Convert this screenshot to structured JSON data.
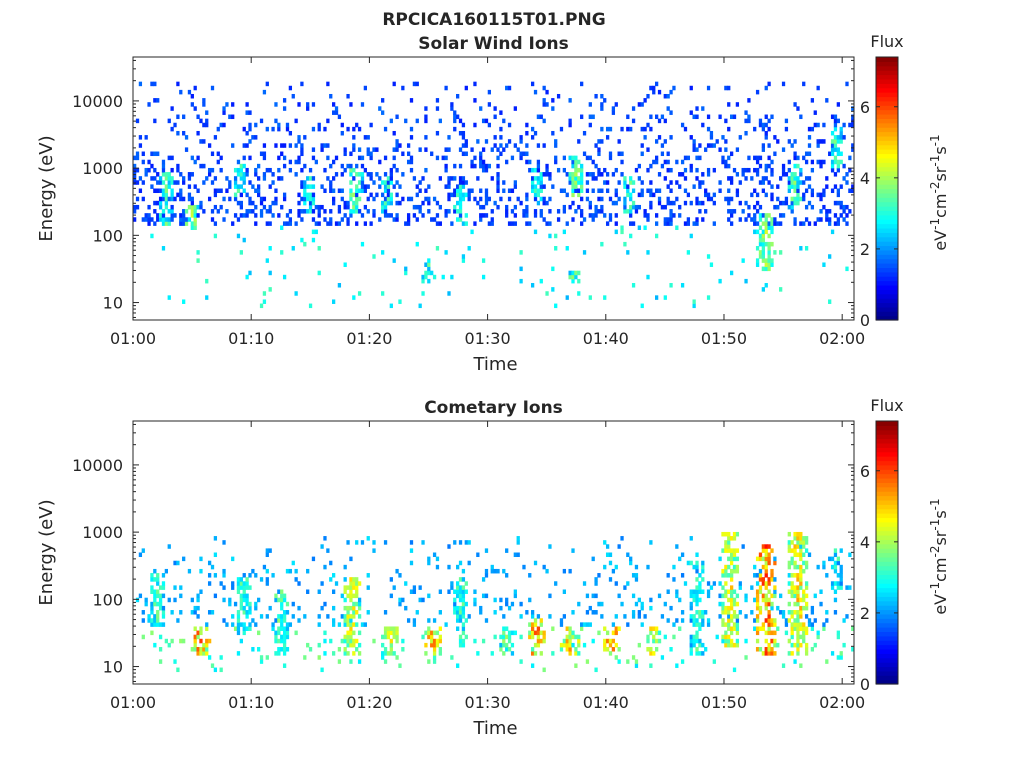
{
  "title": "RPCICA160115T01.PNG",
  "colorbar": {
    "label": "Flux",
    "unit_parts": [
      {
        "text": "eV",
        "sup": false
      },
      {
        "text": "-1",
        "sup": true
      },
      {
        "text": "cm",
        "sup": false
      },
      {
        "text": "-2",
        "sup": true
      },
      {
        "text": "sr",
        "sup": false
      },
      {
        "text": "-1",
        "sup": true
      },
      {
        "text": "s",
        "sup": false
      },
      {
        "text": "-1",
        "sup": true
      }
    ],
    "ticks": [
      "0",
      "2",
      "4",
      "6"
    ],
    "range": [
      0,
      7.4
    ],
    "colormap": "jet"
  },
  "chart_data": [
    {
      "type": "heatmap",
      "title": "Solar Wind Ions",
      "xlabel": "Time",
      "ylabel": "Energy (eV)",
      "x_ticks": [
        "01:00",
        "01:10",
        "01:20",
        "01:30",
        "01:40",
        "01:50",
        "02:00"
      ],
      "x_range_minutes": [
        0,
        61
      ],
      "y_ticks": [
        "10",
        "100",
        "1000",
        "10000"
      ],
      "y_scale": "log",
      "y_range": [
        5.5,
        45000
      ],
      "seed": 101,
      "clusters": [
        {
          "t": 2.8,
          "e_lo": 150,
          "e_hi": 900,
          "v": 3.3,
          "d": 0.5
        },
        {
          "t": 5.0,
          "e_lo": 120,
          "e_hi": 300,
          "v": 3.8,
          "d": 0.6
        },
        {
          "t": 9.0,
          "e_lo": 400,
          "e_hi": 1200,
          "v": 3.2,
          "d": 0.5
        },
        {
          "t": 14.8,
          "e_lo": 200,
          "e_hi": 800,
          "v": 3.2,
          "d": 0.5
        },
        {
          "t": 18.8,
          "e_lo": 200,
          "e_hi": 1000,
          "v": 3.6,
          "d": 0.6
        },
        {
          "t": 21.5,
          "e_lo": 200,
          "e_hi": 800,
          "v": 3.3,
          "d": 0.5
        },
        {
          "t": 25.0,
          "e_lo": 20,
          "e_hi": 40,
          "v": 3.2,
          "d": 0.5
        },
        {
          "t": 27.8,
          "e_lo": 150,
          "e_hi": 600,
          "v": 3.2,
          "d": 0.6
        },
        {
          "t": 34.2,
          "e_lo": 300,
          "e_hi": 1000,
          "v": 3.2,
          "d": 0.5
        },
        {
          "t": 37.5,
          "e_lo": 400,
          "e_hi": 1500,
          "v": 3.7,
          "d": 0.6
        },
        {
          "t": 37.3,
          "e_lo": 20,
          "e_hi": 30,
          "v": 3.5,
          "d": 0.5
        },
        {
          "t": 42.0,
          "e_lo": 200,
          "e_hi": 800,
          "v": 3.3,
          "d": 0.5
        },
        {
          "t": 53.5,
          "e_lo": 30,
          "e_hi": 200,
          "v": 3.9,
          "d": 0.7
        },
        {
          "t": 56.0,
          "e_lo": 250,
          "e_hi": 1200,
          "v": 3.5,
          "d": 0.5
        },
        {
          "t": 59.5,
          "e_lo": 1000,
          "e_hi": 4000,
          "v": 3.4,
          "d": 0.5
        }
      ],
      "base": {
        "e_lo": 150,
        "e_hi": 20000,
        "p_lo": 0.28,
        "p_hi": 0.04,
        "v": 1.1,
        "v_spread": 0.6,
        "low_e_lo": 8,
        "low_e_hi": 150,
        "low_p": 0.025,
        "low_v": 2.8
      }
    },
    {
      "type": "heatmap",
      "title": "Cometary Ions",
      "xlabel": "Time",
      "ylabel": "Energy (eV)",
      "x_ticks": [
        "01:00",
        "01:10",
        "01:20",
        "01:30",
        "01:40",
        "01:50",
        "02:00"
      ],
      "x_range_minutes": [
        0,
        61
      ],
      "y_ticks": [
        "10",
        "100",
        "1000",
        "10000"
      ],
      "y_scale": "log",
      "y_range": [
        5.5,
        45000
      ],
      "seed": 202,
      "clusters": [
        {
          "t": 2.0,
          "e_lo": 40,
          "e_hi": 250,
          "v": 3.3,
          "d": 0.6
        },
        {
          "t": 5.8,
          "e_lo": 15,
          "e_hi": 40,
          "v": 5.6,
          "d": 0.8
        },
        {
          "t": 9.3,
          "e_lo": 30,
          "e_hi": 200,
          "v": 3.4,
          "d": 0.6
        },
        {
          "t": 12.5,
          "e_lo": 15,
          "e_hi": 150,
          "v": 3.6,
          "d": 0.6
        },
        {
          "t": 18.5,
          "e_lo": 15,
          "e_hi": 200,
          "v": 4.6,
          "d": 0.8
        },
        {
          "t": 21.8,
          "e_lo": 15,
          "e_hi": 40,
          "v": 4.4,
          "d": 0.7
        },
        {
          "t": 25.3,
          "e_lo": 15,
          "e_hi": 40,
          "v": 5.2,
          "d": 0.8
        },
        {
          "t": 27.8,
          "e_lo": 20,
          "e_hi": 200,
          "v": 3.3,
          "d": 0.6
        },
        {
          "t": 31.5,
          "e_lo": 15,
          "e_hi": 40,
          "v": 3.6,
          "d": 0.6
        },
        {
          "t": 34.2,
          "e_lo": 15,
          "e_hi": 60,
          "v": 5.4,
          "d": 0.8
        },
        {
          "t": 37.0,
          "e_lo": 15,
          "e_hi": 40,
          "v": 5.0,
          "d": 0.8
        },
        {
          "t": 40.5,
          "e_lo": 15,
          "e_hi": 40,
          "v": 5.3,
          "d": 0.7
        },
        {
          "t": 44.0,
          "e_lo": 15,
          "e_hi": 40,
          "v": 4.6,
          "d": 0.6
        },
        {
          "t": 47.8,
          "e_lo": 15,
          "e_hi": 400,
          "v": 3.3,
          "d": 0.6
        },
        {
          "t": 50.5,
          "e_lo": 20,
          "e_hi": 1000,
          "v": 4.6,
          "d": 0.8
        },
        {
          "t": 53.6,
          "e_lo": 15,
          "e_hi": 700,
          "v": 5.7,
          "d": 0.9
        },
        {
          "t": 56.3,
          "e_lo": 15,
          "e_hi": 1000,
          "v": 4.8,
          "d": 0.8
        },
        {
          "t": 59.5,
          "e_lo": 150,
          "e_hi": 600,
          "v": 3.2,
          "d": 0.5
        }
      ],
      "base": {
        "e_lo": 40,
        "e_hi": 900,
        "p_lo": 0.14,
        "p_hi": 0.03,
        "v": 1.8,
        "v_spread": 0.8,
        "low_e_lo": 8,
        "low_e_hi": 40,
        "low_p": 0.05,
        "low_v": 3.2
      }
    }
  ]
}
